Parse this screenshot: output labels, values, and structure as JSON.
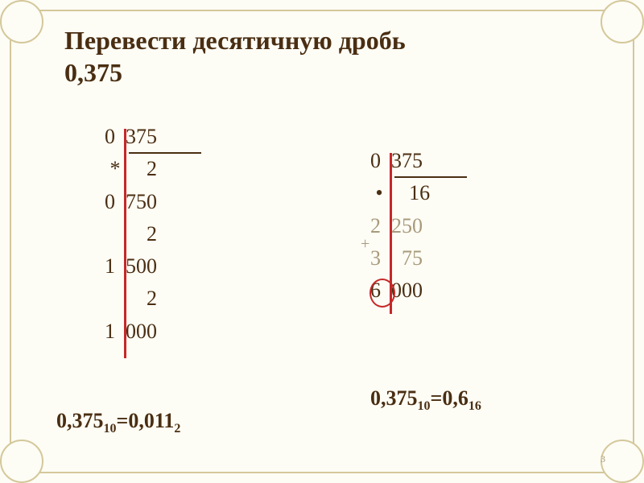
{
  "title_line1": "Перевести десятичную дробь",
  "title_line2": "0,375",
  "left_calc": {
    "rows": [
      {
        "txt": "0  375",
        "under": true
      },
      {
        "txt": " *     2"
      },
      {
        "txt": "0  750"
      },
      {
        "txt": "        2"
      },
      {
        "txt": "1  500"
      },
      {
        "txt": "        2"
      },
      {
        "txt": "1  000"
      }
    ]
  },
  "right_calc": {
    "rows": [
      {
        "txt": "0  375",
        "under": true
      },
      {
        "txt": " •     16"
      },
      {
        "txt": "2  250",
        "faded": true
      },
      {
        "txt": "3    75",
        "faded": true
      },
      {
        "txt": "6  000"
      }
    ]
  },
  "result_left": {
    "lhs": "0,375",
    "lbase": "10",
    "rhs": "0,011",
    "rbase": "2"
  },
  "result_right": {
    "lhs": "0,375",
    "lbase": "10",
    "rhs": "0,6",
    "rbase": "16"
  },
  "pagenum": "3",
  "colors": {
    "bg": "#fdfcf5",
    "border": "#d4c89a",
    "text": "#4a2e12",
    "red": "#c62828",
    "faded": "#a89a7c"
  }
}
